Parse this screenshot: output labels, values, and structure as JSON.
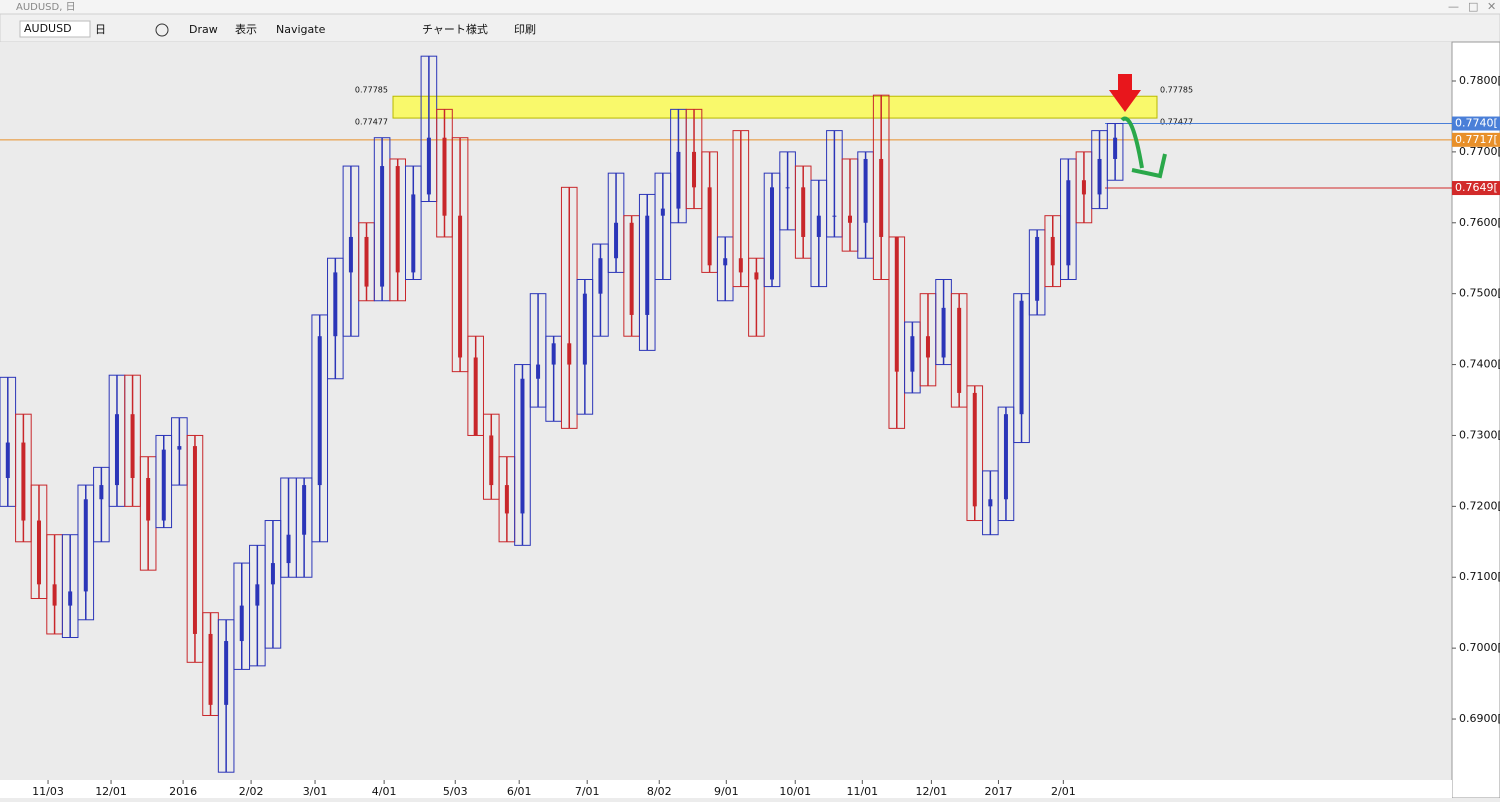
{
  "window": {
    "title": "AUDUSD, 日"
  },
  "toolbar": {
    "symbol": "AUDUSD",
    "timeframe": "日",
    "items": [
      "Draw",
      "表示",
      "Navigate",
      "チャート様式",
      "印刷"
    ]
  },
  "chart_data": {
    "type": "candlestick",
    "open": [
      0.724,
      0.729,
      0.718,
      0.709,
      0.706,
      0.708,
      0.721,
      0.723,
      0.733,
      0.724,
      0.718,
      0.728,
      0.7285,
      0.702,
      0.692,
      0.701,
      0.706,
      0.709,
      0.712,
      0.716,
      0.723,
      0.744,
      0.753,
      0.758,
      0.751,
      0.768,
      0.753,
      0.764,
      0.772,
      0.761,
      0.741,
      0.73,
      0.723,
      0.719,
      0.738,
      0.74,
      0.743,
      0.74,
      0.75,
      0.755,
      0.76,
      0.747,
      0.761,
      0.762,
      0.77,
      0.765,
      0.754,
      0.755,
      0.753,
      0.752,
      0.765,
      0.765,
      0.758,
      0.761,
      0.761,
      0.76,
      0.769,
      0.758,
      0.739,
      0.744,
      0.741,
      0.748,
      0.736,
      0.72,
      0.721,
      0.733,
      0.749,
      0.758,
      0.754,
      0.766,
      0.764,
      0.769
    ],
    "high": [
      0.7382,
      0.733,
      0.723,
      0.716,
      0.716,
      0.723,
      0.7255,
      0.7385,
      0.7385,
      0.727,
      0.73,
      0.7325,
      0.73,
      0.705,
      0.704,
      0.712,
      0.7145,
      0.718,
      0.724,
      0.724,
      0.747,
      0.755,
      0.768,
      0.76,
      0.772,
      0.769,
      0.768,
      0.7835,
      0.776,
      0.772,
      0.744,
      0.733,
      0.727,
      0.74,
      0.75,
      0.744,
      0.765,
      0.752,
      0.757,
      0.767,
      0.761,
      0.764,
      0.767,
      0.776,
      0.776,
      0.77,
      0.758,
      0.773,
      0.755,
      0.767,
      0.77,
      0.768,
      0.766,
      0.773,
      0.769,
      0.77,
      0.778,
      0.758,
      0.746,
      0.75,
      0.752,
      0.75,
      0.737,
      0.725,
      0.734,
      0.75,
      0.759,
      0.761,
      0.769,
      0.77,
      0.773,
      0.774
    ],
    "low": [
      0.72,
      0.715,
      0.707,
      0.702,
      0.7015,
      0.704,
      0.715,
      0.72,
      0.72,
      0.711,
      0.717,
      0.723,
      0.698,
      0.6905,
      0.6825,
      0.697,
      0.6975,
      0.7,
      0.71,
      0.71,
      0.715,
      0.738,
      0.744,
      0.749,
      0.749,
      0.749,
      0.752,
      0.763,
      0.758,
      0.739,
      0.73,
      0.721,
      0.715,
      0.7145,
      0.734,
      0.732,
      0.731,
      0.733,
      0.744,
      0.753,
      0.744,
      0.742,
      0.752,
      0.76,
      0.762,
      0.753,
      0.749,
      0.751,
      0.744,
      0.751,
      0.759,
      0.755,
      0.751,
      0.758,
      0.756,
      0.755,
      0.752,
      0.731,
      0.736,
      0.737,
      0.74,
      0.734,
      0.718,
      0.716,
      0.718,
      0.729,
      0.747,
      0.751,
      0.752,
      0.76,
      0.762,
      0.766
    ],
    "close": [
      0.729,
      0.718,
      0.709,
      0.706,
      0.708,
      0.721,
      0.723,
      0.733,
      0.724,
      0.718,
      0.728,
      0.7285,
      0.702,
      0.692,
      0.701,
      0.706,
      0.709,
      0.712,
      0.716,
      0.723,
      0.744,
      0.753,
      0.758,
      0.751,
      0.768,
      0.753,
      0.764,
      0.772,
      0.761,
      0.741,
      0.73,
      0.723,
      0.719,
      0.738,
      0.74,
      0.743,
      0.74,
      0.75,
      0.755,
      0.76,
      0.747,
      0.761,
      0.762,
      0.77,
      0.765,
      0.754,
      0.755,
      0.753,
      0.752,
      0.765,
      0.765,
      0.758,
      0.761,
      0.761,
      0.76,
      0.769,
      0.758,
      0.739,
      0.744,
      0.741,
      0.748,
      0.736,
      0.72,
      0.721,
      0.733,
      0.749,
      0.758,
      0.754,
      0.766,
      0.764,
      0.769,
      0.772
    ],
    "up_color": "#2b35b8",
    "down_color": "#c8262a",
    "xlim": [
      0,
      93.1
    ],
    "xticks": [
      {
        "value": 3.08,
        "label": "11/03"
      },
      {
        "value": 7.12,
        "label": "12/01"
      },
      {
        "value": 11.74,
        "label": "2016"
      },
      {
        "value": 16.1,
        "label": "2/02"
      },
      {
        "value": 20.2,
        "label": "3/01"
      },
      {
        "value": 24.63,
        "label": "4/01"
      },
      {
        "value": 29.19,
        "label": "5/03"
      },
      {
        "value": 33.29,
        "label": "6/01"
      },
      {
        "value": 37.65,
        "label": "7/01"
      },
      {
        "value": 42.27,
        "label": "8/02"
      },
      {
        "value": 46.57,
        "label": "9/01"
      },
      {
        "value": 50.99,
        "label": "10/01"
      },
      {
        "value": 55.29,
        "label": "11/01"
      },
      {
        "value": 59.72,
        "label": "12/01"
      },
      {
        "value": 64.02,
        "label": "2017"
      },
      {
        "value": 68.18,
        "label": "2/01"
      }
    ],
    "ylim": [
      0.6814,
      0.7855
    ],
    "yticks": [
      {
        "value": 0.69,
        "label": "0.6900[0"
      },
      {
        "value": 0.7,
        "label": "0.7000[0"
      },
      {
        "value": 0.71,
        "label": "0.7100[0"
      },
      {
        "value": 0.72,
        "label": "0.7200[0"
      },
      {
        "value": 0.73,
        "label": "0.7300[0"
      },
      {
        "value": 0.74,
        "label": "0.7400[0"
      },
      {
        "value": 0.75,
        "label": "0.7500[0"
      },
      {
        "value": 0.76,
        "label": "0.7600[0"
      },
      {
        "value": 0.77,
        "label": "0.7700[0"
      },
      {
        "value": 0.78,
        "label": "0.7800[0"
      }
    ],
    "zone": [
      0.77477,
      0.77785
    ],
    "levels": [
      {
        "value": 0.774,
        "label": "0.7740[",
        "color": "#4a7fd8"
      },
      {
        "value": 0.7717,
        "label": "0.7717[",
        "color": "#e8902a"
      },
      {
        "value": 0.7649,
        "label": "0.7649[",
        "color": "#d22a2a"
      }
    ]
  }
}
